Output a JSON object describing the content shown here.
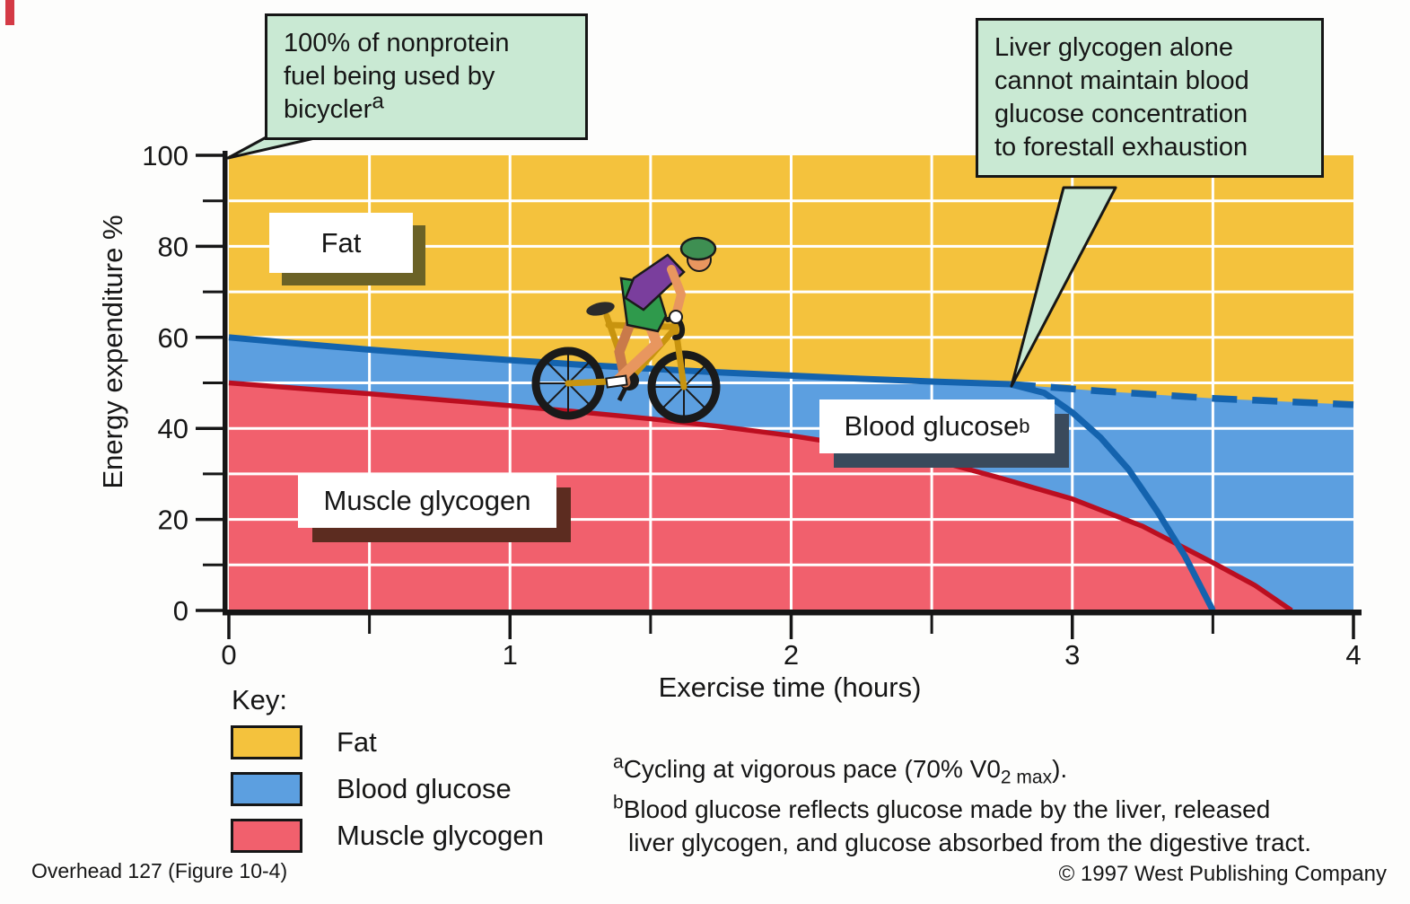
{
  "callout_top_left": {
    "lines": [
      "100% of nonprotein",
      "fuel being used by",
      "bicycler"
    ],
    "sup": "a",
    "bg": "#C9E9D3"
  },
  "callout_top_right": {
    "lines": [
      "Liver glycogen alone",
      "cannot maintain blood",
      "glucose concentration",
      "to forestall exhaustion"
    ],
    "bg": "#C9E9D3"
  },
  "region_labels": {
    "fat": "Fat",
    "blood_glucose": "Blood glucose",
    "blood_glucose_sup": "b",
    "muscle_glycogen": "Muscle glycogen"
  },
  "key": {
    "title": "Key:",
    "items": [
      {
        "label": "Fat",
        "color": "#F4C23D"
      },
      {
        "label": "Blood glucose",
        "color": "#5C9FE0"
      },
      {
        "label": "Muscle glycogen",
        "color": "#F1606D"
      }
    ]
  },
  "footnotes": {
    "a_sup": "a",
    "a_pre": "Cycling at vigorous pace (70% V0",
    "a_sub": "2 max",
    "a_post": ").",
    "b_sup": "b",
    "b_line1": "Blood glucose reflects glucose made by the liver, released",
    "b_line2": "liver glycogen, and glucose absorbed from the digestive tract."
  },
  "footer": {
    "left": "Overhead 127 (Figure 10-4)",
    "right": "© 1997 West Publishing Company"
  },
  "chart_data": {
    "type": "area",
    "title": "",
    "xlabel": "Exercise time (hours)",
    "ylabel": "Energy expenditure %",
    "xlim": [
      0,
      4
    ],
    "ylim": [
      0,
      100
    ],
    "x_ticks": [
      0,
      1,
      2,
      3,
      4
    ],
    "x_minor_ticks": [
      0.5,
      1.5,
      2.5,
      3.5
    ],
    "y_ticks": [
      0,
      20,
      40,
      60,
      80,
      100
    ],
    "y_minor_ticks": [
      10,
      30,
      50,
      70,
      90
    ],
    "grid": {
      "on": true,
      "color": "#ffffff",
      "x_step": 0.5,
      "y_step": 10
    },
    "legend_position": "bottom-left",
    "colors": {
      "fat_fill": "#F4C23D",
      "blood_glucose_fill": "#5C9FE0",
      "muscle_glycogen_fill": "#F1606D",
      "blood_glucose_line": "#1463AE",
      "muscle_glycogen_line": "#BB0E20",
      "axis": "#161616"
    },
    "series": [
      {
        "name": "Blood glucose upper boundary (solid)",
        "style": "solid",
        "points": [
          [
            0,
            60
          ],
          [
            0.25,
            58.6
          ],
          [
            0.5,
            57.3
          ],
          [
            0.75,
            56.1
          ],
          [
            1,
            55
          ],
          [
            1.25,
            54
          ],
          [
            1.5,
            53.1
          ],
          [
            1.75,
            52.3
          ],
          [
            2,
            51.6
          ],
          [
            2.25,
            50.9
          ],
          [
            2.5,
            50.3
          ],
          [
            2.78,
            49.7
          ]
        ]
      },
      {
        "name": "Liver-glycogen-alone projection (dashed)",
        "style": "dashed",
        "points": [
          [
            2.78,
            49.7
          ],
          [
            3.1,
            48.2
          ],
          [
            3.5,
            46.6
          ],
          [
            4,
            45.2
          ]
        ]
      },
      {
        "name": "Blood glucose exhaustion drop (solid)",
        "style": "solid",
        "points": [
          [
            2.78,
            49.7
          ],
          [
            2.9,
            47.8
          ],
          [
            3.0,
            43.5
          ],
          [
            3.1,
            38
          ],
          [
            3.2,
            31
          ],
          [
            3.3,
            22
          ],
          [
            3.4,
            12
          ],
          [
            3.45,
            6
          ],
          [
            3.5,
            0
          ]
        ]
      },
      {
        "name": "Muscle glycogen upper boundary",
        "style": "solid",
        "points": [
          [
            0,
            50
          ],
          [
            0.25,
            48.8
          ],
          [
            0.5,
            47.6
          ],
          [
            0.75,
            46.3
          ],
          [
            1,
            45
          ],
          [
            1.25,
            43.6
          ],
          [
            1.5,
            42.1
          ],
          [
            1.75,
            40.4
          ],
          [
            2,
            38.4
          ],
          [
            2.25,
            36
          ],
          [
            2.5,
            33.2
          ],
          [
            2.75,
            29
          ],
          [
            3,
            24.5
          ],
          [
            3.25,
            18.5
          ],
          [
            3.5,
            10.5
          ],
          [
            3.65,
            5.5
          ],
          [
            3.78,
            0
          ]
        ]
      }
    ],
    "annotations": [
      {
        "text": "100% of nonprotein fuel being used by bicycler(a)",
        "points_to_xy": [
          0,
          100
        ]
      },
      {
        "text": "Liver glycogen alone cannot maintain blood glucose concentration to forestall exhaustion",
        "points_to_xy": [
          2.78,
          49.7
        ]
      }
    ]
  }
}
